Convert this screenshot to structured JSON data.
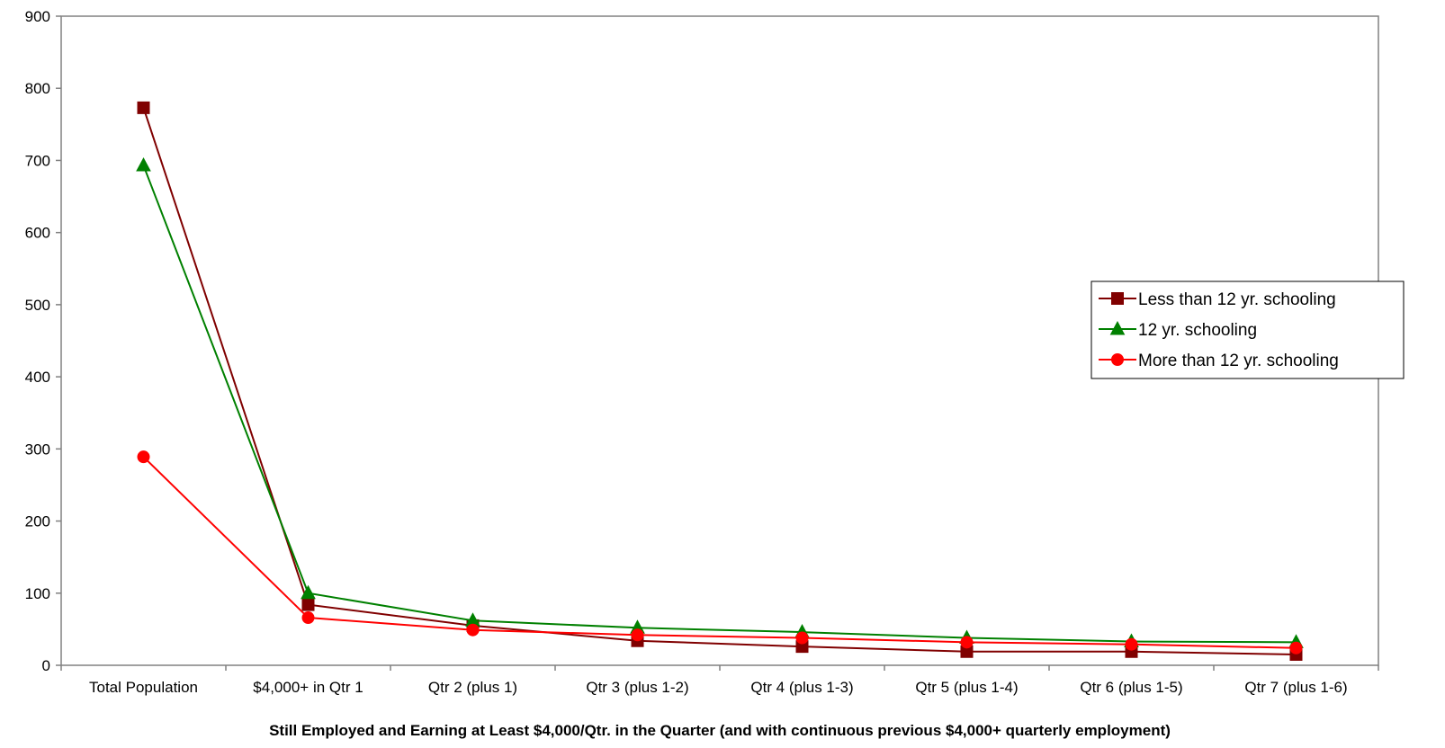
{
  "chart_data": {
    "type": "line",
    "title": "",
    "xlabel": "Still Employed and Earning at Least $4,000/Qtr. in the Quarter (and with continuous previous $4,000+ quarterly employment)",
    "ylabel": "",
    "categories": [
      "Total Population",
      "$4,000+ in Qtr 1",
      "Qtr 2 (plus 1)",
      "Qtr 3 (plus 1-2)",
      "Qtr 4 (plus 1-3)",
      "Qtr 5 (plus 1-4)",
      "Qtr 6 (plus 1-5)",
      "Qtr 7 (plus 1-6)"
    ],
    "ylim": [
      0,
      900
    ],
    "yticks": [
      0,
      100,
      200,
      300,
      400,
      500,
      600,
      700,
      800,
      900
    ],
    "grid": false,
    "legend_position": "right",
    "series": [
      {
        "name": "Less than 12 yr. schooling",
        "color": "#800000",
        "marker": "square",
        "values": [
          773,
          84,
          55,
          34,
          26,
          19,
          19,
          15
        ]
      },
      {
        "name": "12 yr. schooling",
        "color": "#008000",
        "marker": "triangle",
        "values": [
          693,
          100,
          62,
          52,
          46,
          38,
          33,
          32
        ]
      },
      {
        "name": "More than 12 yr. schooling",
        "color": "#ff0000",
        "marker": "circle",
        "values": [
          289,
          66,
          49,
          42,
          38,
          32,
          29,
          24
        ]
      }
    ]
  }
}
